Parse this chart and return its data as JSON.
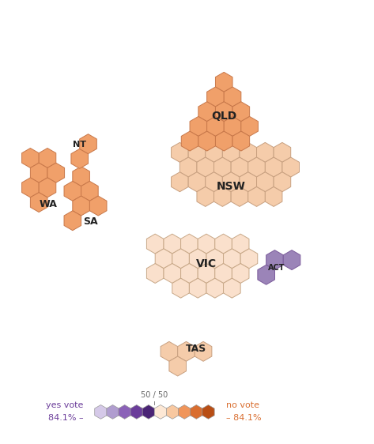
{
  "background_color": "#ffffff",
  "states": {
    "QLD": {
      "color": "#f0a06a",
      "edge": "#c8784a",
      "label": "QLD",
      "label_fontsize": 10
    },
    "NSW": {
      "color": "#f5ccaa",
      "edge": "#c8a080",
      "label": "NSW",
      "label_fontsize": 10
    },
    "VIC": {
      "color": "#fae0cc",
      "edge": "#c8a888",
      "label": "VIC",
      "label_fontsize": 10
    },
    "WA": {
      "color": "#f0a06a",
      "edge": "#c8784a",
      "label": "WA",
      "label_fontsize": 9
    },
    "SA": {
      "color": "#f0a06a",
      "edge": "#c8784a",
      "label": "SA",
      "label_fontsize": 9
    },
    "NT": {
      "color": "#f0a06a",
      "edge": "#c8784a",
      "label": "NT",
      "label_fontsize": 8
    },
    "TAS": {
      "color": "#f5ccaa",
      "edge": "#c8a080",
      "label": "TAS",
      "label_fontsize": 9
    },
    "ACT": {
      "color": "#9b84b8",
      "edge": "#7a5a9a",
      "label": "ACT",
      "label_fontsize": 7
    }
  },
  "hex_colors_yes": [
    "#4a2475",
    "#6b3d9a",
    "#8b62b8",
    "#b09dcf",
    "#d5c9e8"
  ],
  "hex_colors_no": [
    "#fde8d5",
    "#f8c8a0",
    "#f0955a",
    "#d96e30",
    "#b84e15"
  ],
  "legend_yes_pct": "84.1%",
  "legend_no_pct": "84.1%",
  "legend_50_label": "50 / 50",
  "legend_yes_label": "yes vote",
  "legend_no_label": "no vote"
}
